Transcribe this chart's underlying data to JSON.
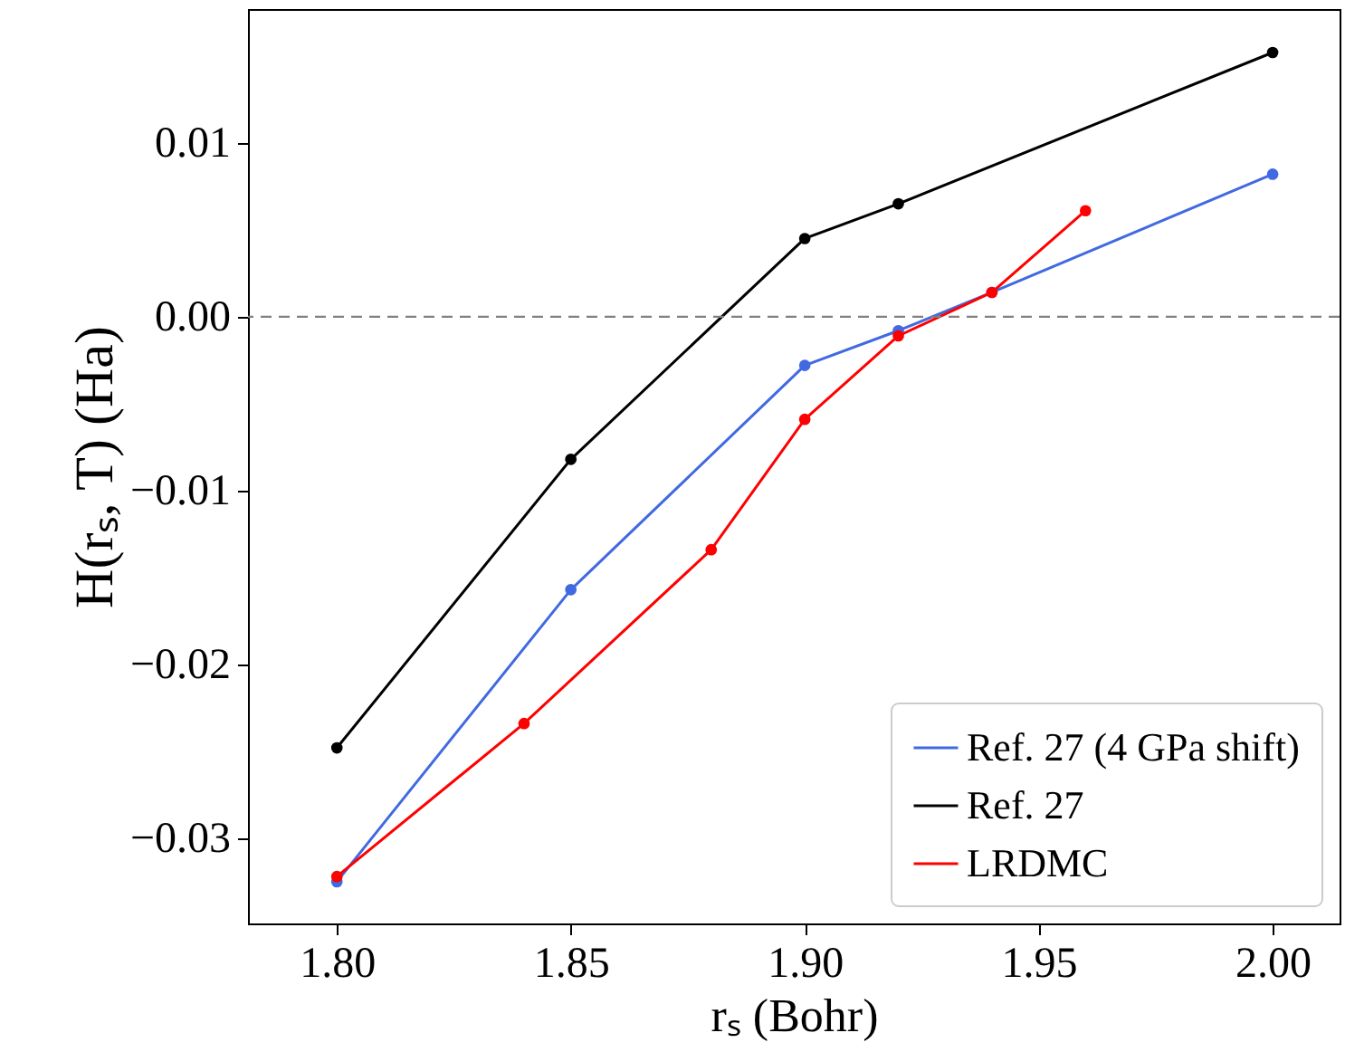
{
  "chart_data": {
    "type": "line",
    "xlabel": "rₛ (Bohr)",
    "ylabel": "H(rₛ, T) (Ha)",
    "xlim": [
      1.781,
      2.0143
    ],
    "ylim": [
      -0.0349,
      0.0177
    ],
    "xticks": [
      {
        "value": 1.8,
        "label": "1.80"
      },
      {
        "value": 1.85,
        "label": "1.85"
      },
      {
        "value": 1.9,
        "label": "1.90"
      },
      {
        "value": 1.95,
        "label": "1.95"
      },
      {
        "value": 2.0,
        "label": "2.00"
      }
    ],
    "yticks": [
      {
        "value": -0.03,
        "label": "−0.03"
      },
      {
        "value": -0.02,
        "label": "−0.02"
      },
      {
        "value": -0.01,
        "label": "−0.01"
      },
      {
        "value": 0,
        "label": "0.00"
      },
      {
        "value": 0.01,
        "label": "0.01"
      }
    ],
    "series": [
      {
        "name": "Ref. 27 (4 GPa shift)",
        "color": "#4169e1",
        "x": [
          1.8,
          1.85,
          1.9,
          1.92,
          1.94,
          2.0
        ],
        "values": [
          -0.0325,
          -0.0157,
          -0.0028,
          -0.0008,
          0.0014,
          0.0082
        ]
      },
      {
        "name": "Ref. 27",
        "color": "#000000",
        "x": [
          1.8,
          1.85,
          1.9,
          1.92,
          2.0
        ],
        "values": [
          -0.0248,
          -0.0082,
          0.0045,
          0.0065,
          0.0152
        ]
      },
      {
        "name": "LRDMC",
        "color": "#ff0000",
        "x": [
          1.8,
          1.84,
          1.88,
          1.9,
          1.92,
          1.94,
          1.96
        ],
        "values": [
          -0.0322,
          -0.0234,
          -0.0134,
          -0.0059,
          -0.0011,
          0.0014,
          0.0061
        ]
      }
    ],
    "ref_lines": [
      {
        "axis": "y",
        "value": 0,
        "color": "#808080",
        "line_style": "dashed"
      }
    ],
    "marker": "circle",
    "legend": "bottom right",
    "grid": false
  }
}
